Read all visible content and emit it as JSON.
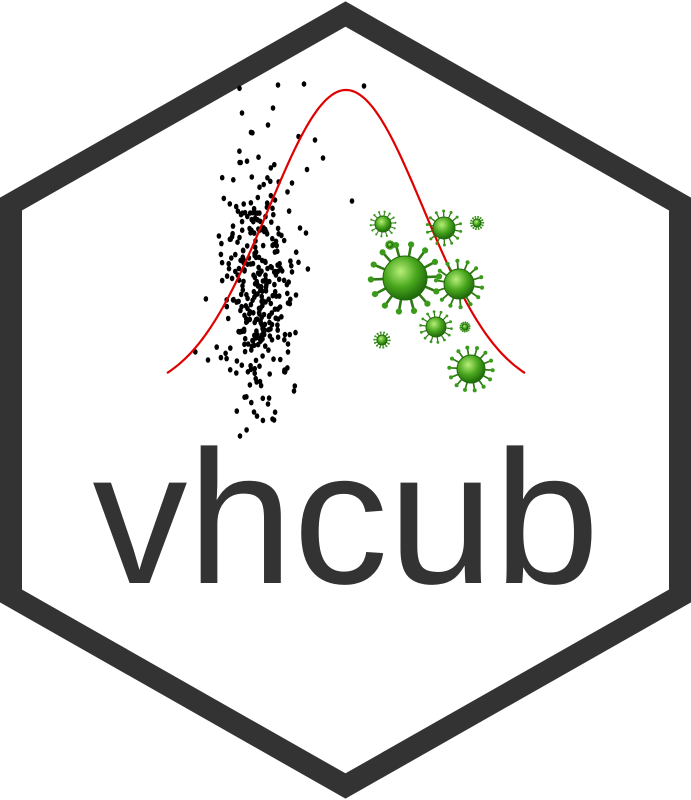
{
  "logo": {
    "wordmark": "vhcub",
    "colors": {
      "border": "#333333",
      "background": "#ffffff",
      "text": "#333333",
      "curve": "#e00000",
      "points": "#000000",
      "virus_body": "#3a9a1a",
      "virus_highlight": "#8fd65a",
      "virus_spike": "#2f7a12"
    },
    "icons": [
      "hexagon-border",
      "scatter-points",
      "normal-curve",
      "virus-icon"
    ]
  }
}
